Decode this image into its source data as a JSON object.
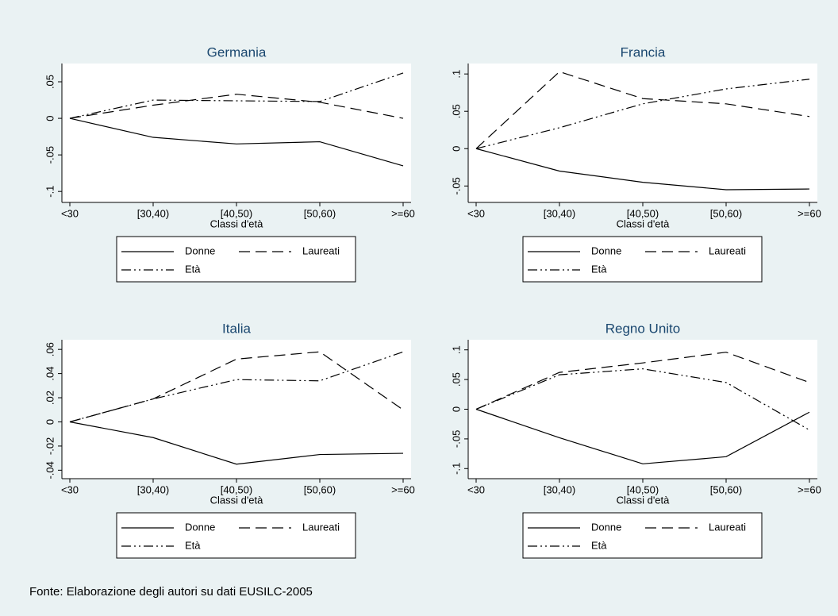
{
  "chart_data": [
    {
      "type": "line",
      "title": "Germania",
      "x_label": "Classi d'età",
      "categories": [
        "<30",
        "[30,40)",
        "[40,50)",
        "[50,60)",
        ">=60"
      ],
      "series": [
        {
          "name": "Donne",
          "color": "#000000",
          "values": [
            0,
            -0.026,
            -0.035,
            -0.032,
            -0.065
          ]
        },
        {
          "name": "Laureati",
          "color": "#000000",
          "values": [
            0,
            0.018,
            0.033,
            0.022,
            0.0
          ]
        },
        {
          "name": "Età",
          "color": "#000000",
          "values": [
            0,
            0.025,
            0.024,
            0.023,
            0.062
          ]
        }
      ],
      "ylim": [
        -0.115,
        0.075
      ],
      "yticks": [
        {
          "value": 0.05,
          "label": ".05"
        },
        0,
        {
          "value": -0.05,
          "label": "-.05"
        },
        {
          "value": -0.1,
          "label": "-.1"
        }
      ]
    },
    {
      "type": "line",
      "title": "Francia",
      "x_label": "Classi d'età",
      "categories": [
        "<30",
        "[30,40)",
        "[40,50)",
        "[50,60)",
        ">=60"
      ],
      "series": [
        {
          "name": "Donne",
          "color": "#000000",
          "values": [
            0,
            -0.03,
            -0.045,
            -0.055,
            -0.054
          ]
        },
        {
          "name": "Laureati",
          "color": "#000000",
          "values": [
            0,
            0.103,
            0.067,
            0.06,
            0.043
          ]
        },
        {
          "name": "Età",
          "color": "#000000",
          "values": [
            0,
            0.028,
            0.06,
            0.08,
            0.093
          ]
        }
      ],
      "ylim": [
        -0.072,
        0.114
      ],
      "yticks": [
        {
          "value": 0.1,
          "label": ".1"
        },
        {
          "value": 0.05,
          "label": ".05"
        },
        0,
        {
          "value": -0.05,
          "label": "-.05"
        }
      ]
    },
    {
      "type": "line",
      "title": "Italia",
      "x_label": "Classi d'età",
      "categories": [
        "<30",
        "[30,40)",
        "[40,50)",
        "[50,60)",
        ">=60"
      ],
      "series": [
        {
          "name": "Donne",
          "color": "#000000",
          "values": [
            0,
            -0.013,
            -0.035,
            -0.027,
            -0.026
          ]
        },
        {
          "name": "Laureati",
          "color": "#000000",
          "values": [
            0,
            0.019,
            0.052,
            0.058,
            0.01
          ]
        },
        {
          "name": "Età",
          "color": "#000000",
          "values": [
            0,
            0.019,
            0.035,
            0.034,
            0.058
          ]
        }
      ],
      "ylim": [
        -0.047,
        0.068
      ],
      "yticks": [
        {
          "value": 0.06,
          "label": ".06"
        },
        {
          "value": 0.04,
          "label": ".04"
        },
        {
          "value": 0.02,
          "label": ".02"
        },
        0,
        {
          "value": -0.02,
          "label": "-.02"
        },
        {
          "value": -0.04,
          "label": "-.04"
        }
      ]
    },
    {
      "type": "line",
      "title": "Regno Unito",
      "x_label": "Classi d'età",
      "categories": [
        "<30",
        "[30,40)",
        "[40,50)",
        "[50,60)",
        ">=60"
      ],
      "series": [
        {
          "name": "Donne",
          "color": "#000000",
          "values": [
            0,
            -0.048,
            -0.092,
            -0.08,
            -0.005
          ]
        },
        {
          "name": "Laureati",
          "color": "#000000",
          "values": [
            0,
            0.062,
            0.078,
            0.096,
            0.045
          ]
        },
        {
          "name": "Età",
          "color": "#000000",
          "values": [
            0,
            0.058,
            0.068,
            0.045,
            -0.035
          ]
        }
      ],
      "ylim": [
        -0.117,
        0.117
      ],
      "yticks": [
        {
          "value": 0.1,
          "label": ".1"
        },
        {
          "value": 0.05,
          "label": ".05"
        },
        0,
        {
          "value": -0.05,
          "label": "-.05"
        },
        {
          "value": -0.1,
          "label": "-.1"
        }
      ]
    }
  ],
  "source": "Fonte: Elaborazione degli autori su dati EUSILC-2005"
}
